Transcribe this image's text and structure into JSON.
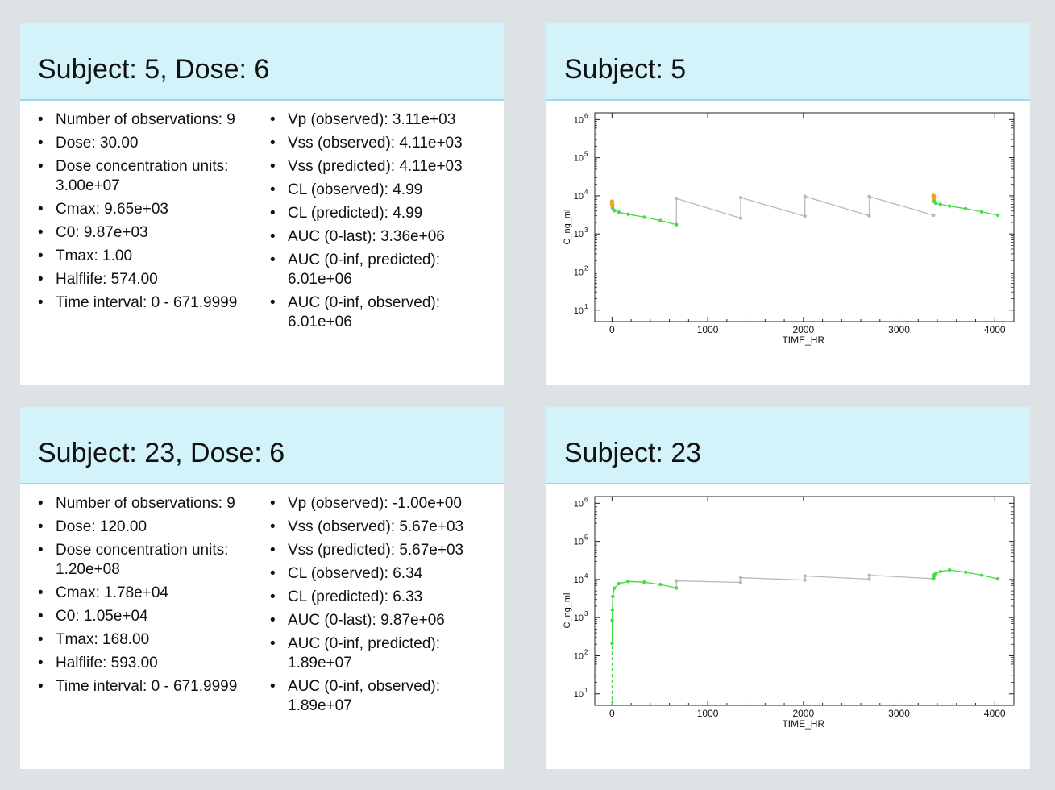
{
  "panels": [
    {
      "title": "Subject: 5,  Dose: 6",
      "left_col": [
        "Number of observations: 9",
        "Dose:  30.00",
        "Dose concentration units:",
        "3.00e+07",
        "Cmax:  9.65e+03",
        "C0:  9.87e+03",
        "Tmax:  1.00",
        "Halflife:  574.00",
        "Time interval:  0 - 671.9999"
      ],
      "right_col": [
        "Vp  (observed): 3.11e+03",
        "Vss (observed): 4.11e+03",
        "Vss (predicted): 4.11e+03",
        "CL  (observed): 4.99",
        "CL  (predicted): 4.99",
        "AUC (0-last): 3.36e+06",
        "AUC (0-inf, predicted):",
        "6.01e+06",
        "AUC (0-inf, observed):",
        "6.01e+06"
      ]
    },
    {
      "title": "Subject: 23,  Dose: 6",
      "left_col": [
        "Number of observations: 9",
        "Dose:  120.00",
        "Dose concentration units:",
        "1.20e+08",
        "Cmax:  1.78e+04",
        "C0:  1.05e+04",
        "Tmax:  168.00",
        "Halflife:  593.00",
        "Time interval:  0 - 671.9999"
      ],
      "right_col": [
        "Vp  (observed): -1.00e+00",
        "Vss (observed): 5.67e+03",
        "Vss (predicted): 5.67e+03",
        "CL  (observed): 6.34",
        "CL  (predicted): 6.33",
        "AUC (0-last): 9.87e+06",
        "AUC (0-inf, predicted):",
        "1.89e+07",
        "AUC (0-inf, observed):",
        "1.89e+07"
      ]
    }
  ],
  "chart_panels": [
    {
      "title": "Subject: 5"
    },
    {
      "title": "Subject: 23"
    }
  ],
  "chart_data": [
    {
      "type": "line",
      "title": "",
      "xlabel": "TIME_HR",
      "ylabel": "C_ng_ml",
      "xlim": [
        -180,
        4200
      ],
      "ylim": [
        5,
        1500000
      ],
      "yscale": "log",
      "x_ticks": [
        0,
        1000,
        2000,
        3000,
        4000
      ],
      "x_tick_labels": [
        "0",
        "1000",
        "2000",
        "3000",
        "4000"
      ],
      "y_ticks": [
        10,
        100,
        1000,
        10000,
        100000,
        1000000
      ],
      "y_tick_labels": [
        "10",
        "10",
        "10",
        "10",
        "10",
        "10"
      ],
      "y_tick_exponents": [
        "1",
        "2",
        "3",
        "4",
        "5",
        "6"
      ],
      "grid": false,
      "colors": {
        "gray": "#b9b9b9",
        "green": "#44dd44",
        "orange": "#f5a020",
        "axis": "#222222"
      },
      "series": [
        {
          "style": "gray",
          "x": [
            672,
            673,
            1344,
            1345,
            2016,
            2017,
            2688,
            2689,
            3360
          ],
          "y": [
            1750,
            8500,
            2600,
            9000,
            2900,
            9600,
            3000,
            9600,
            3100
          ]
        },
        {
          "style": "green",
          "x": [
            0,
            1,
            2,
            4,
            8,
            24,
            72,
            168,
            336,
            504,
            672
          ],
          "y": [
            6600,
            6000,
            5500,
            5000,
            4600,
            4100,
            3700,
            3300,
            2750,
            2250,
            1750
          ]
        },
        {
          "style": "green",
          "x": [
            3360,
            3361,
            3362,
            3364,
            3368,
            3384,
            3432,
            3528,
            3696,
            3864,
            4032
          ],
          "y": [
            9650,
            9000,
            8300,
            7600,
            7000,
            6400,
            6000,
            5400,
            4600,
            3800,
            3100
          ]
        }
      ],
      "highlight_points": [
        {
          "x": 0,
          "y": 7000
        },
        {
          "x": 2,
          "y": 5800
        },
        {
          "x": 3360,
          "y": 9900
        },
        {
          "x": 3363,
          "y": 8800
        }
      ]
    },
    {
      "type": "line",
      "title": "",
      "xlabel": "TIME_HR",
      "ylabel": "C_ng_ml",
      "xlim": [
        -180,
        4200
      ],
      "ylim": [
        5,
        1500000
      ],
      "yscale": "log",
      "x_ticks": [
        0,
        1000,
        2000,
        3000,
        4000
      ],
      "x_tick_labels": [
        "0",
        "1000",
        "2000",
        "3000",
        "4000"
      ],
      "y_ticks": [
        10,
        100,
        1000,
        10000,
        100000,
        1000000
      ],
      "y_tick_labels": [
        "10",
        "10",
        "10",
        "10",
        "10",
        "10"
      ],
      "y_tick_exponents": [
        "1",
        "2",
        "3",
        "4",
        "5",
        "6"
      ],
      "grid": false,
      "colors": {
        "gray": "#b9b9b9",
        "green": "#44dd44",
        "orange": "#f5a020",
        "axis": "#222222"
      },
      "series": [
        {
          "style": "gray",
          "x": [
            672,
            673,
            1344,
            1345,
            2016,
            2017,
            2688,
            2689,
            3360
          ],
          "y": [
            6000,
            9200,
            8400,
            11200,
            9600,
            12400,
            10200,
            13000,
            10500
          ]
        },
        {
          "style": "green",
          "dashed_start": true,
          "x": [
            0,
            1,
            2,
            4,
            8,
            24,
            72,
            168,
            336,
            504,
            672
          ],
          "y": [
            5,
            210,
            850,
            1600,
            3600,
            5900,
            7800,
            8900,
            8500,
            7400,
            6000
          ]
        },
        {
          "style": "green",
          "x": [
            3360,
            3361,
            3362,
            3364,
            3368,
            3384,
            3432,
            3528,
            3696,
            3864,
            4032
          ],
          "y": [
            10500,
            11000,
            11800,
            12500,
            13300,
            14500,
            16200,
            17800,
            15600,
            13000,
            10400
          ]
        }
      ],
      "highlight_points": []
    }
  ]
}
